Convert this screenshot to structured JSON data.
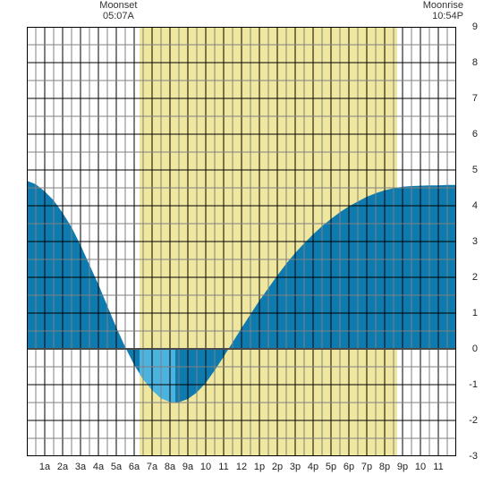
{
  "annotations": {
    "moonset": {
      "label": "Moonset",
      "time": "05:07A",
      "hour": 5.12
    },
    "moonrise": {
      "label": "Moonrise",
      "time": "10:54P",
      "hour": 22.9
    }
  },
  "tide_chart": {
    "type": "area",
    "xlim": [
      0,
      24
    ],
    "ylim": [
      -3,
      9
    ],
    "xtick_step": 1,
    "xtick_minor_step": 0.5,
    "ytick_step": 1,
    "ytick_minor_step": 0.5,
    "xtick_labels": [
      "1a",
      "2a",
      "3a",
      "4a",
      "5a",
      "6a",
      "7a",
      "8a",
      "9a",
      "10",
      "11",
      "12",
      "1p",
      "2p",
      "3p",
      "4p",
      "5p",
      "6p",
      "7p",
      "8p",
      "9p",
      "10",
      "11"
    ],
    "xtick_label_positions": [
      1,
      2,
      3,
      4,
      5,
      6,
      7,
      8,
      9,
      10,
      11,
      12,
      13,
      14,
      15,
      16,
      17,
      18,
      19,
      20,
      21,
      22,
      23
    ],
    "ytick_labels": [
      "-3",
      "-2",
      "-1",
      "0",
      "1",
      "2",
      "3",
      "4",
      "5",
      "6",
      "7",
      "8",
      "9"
    ],
    "ytick_label_positions": [
      -3,
      -2,
      -1,
      0,
      1,
      2,
      3,
      4,
      5,
      6,
      7,
      8,
      9
    ],
    "daylight": {
      "start_hour": 6.3,
      "end_hour": 20.7
    },
    "night_split_hour": 8.3,
    "tide_points": [
      [
        0.0,
        4.7
      ],
      [
        0.5,
        4.6
      ],
      [
        1.0,
        4.4
      ],
      [
        1.5,
        4.15
      ],
      [
        2.0,
        3.8
      ],
      [
        2.5,
        3.4
      ],
      [
        3.0,
        2.9
      ],
      [
        3.5,
        2.35
      ],
      [
        4.0,
        1.8
      ],
      [
        4.5,
        1.2
      ],
      [
        5.0,
        0.6
      ],
      [
        5.5,
        0.05
      ],
      [
        6.0,
        -0.45
      ],
      [
        6.5,
        -0.85
      ],
      [
        7.0,
        -1.15
      ],
      [
        7.5,
        -1.38
      ],
      [
        8.0,
        -1.48
      ],
      [
        8.3,
        -1.5
      ],
      [
        8.5,
        -1.49
      ],
      [
        9.0,
        -1.4
      ],
      [
        9.5,
        -1.22
      ],
      [
        10.0,
        -0.95
      ],
      [
        10.5,
        -0.6
      ],
      [
        11.0,
        -0.22
      ],
      [
        11.5,
        0.18
      ],
      [
        12.0,
        0.58
      ],
      [
        12.5,
        0.97
      ],
      [
        13.0,
        1.35
      ],
      [
        13.5,
        1.7
      ],
      [
        14.0,
        2.05
      ],
      [
        14.5,
        2.38
      ],
      [
        15.0,
        2.68
      ],
      [
        15.5,
        2.95
      ],
      [
        16.0,
        3.2
      ],
      [
        16.5,
        3.43
      ],
      [
        17.0,
        3.63
      ],
      [
        17.5,
        3.82
      ],
      [
        18.0,
        3.98
      ],
      [
        18.5,
        4.12
      ],
      [
        19.0,
        4.25
      ],
      [
        19.5,
        4.35
      ],
      [
        20.0,
        4.43
      ],
      [
        20.5,
        4.49
      ],
      [
        21.0,
        4.53
      ],
      [
        21.5,
        4.55
      ],
      [
        22.0,
        4.56
      ],
      [
        22.5,
        4.57
      ],
      [
        23.0,
        4.57
      ],
      [
        23.5,
        4.58
      ],
      [
        24.0,
        4.58
      ]
    ],
    "colors": {
      "background": "#ffffff",
      "daylight_fill": "#f0e79e",
      "tide_night_fill": "#0d7bb0",
      "tide_day_fill": "#4bb3df",
      "gridline": "#000000",
      "gridline_minor": "#808080",
      "border": "#000000",
      "baseline": "#4a4a4a",
      "text": "#333333"
    },
    "line_widths": {
      "border": 1,
      "major_grid": 1,
      "minor_grid": 1,
      "baseline": 2
    },
    "label_fontsize": 11
  }
}
